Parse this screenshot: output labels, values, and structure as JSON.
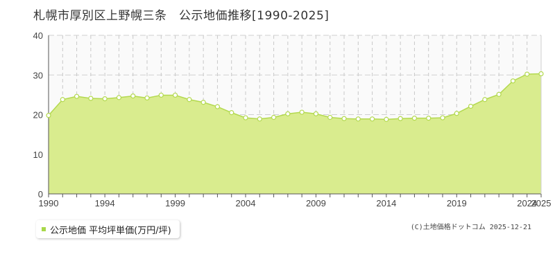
{
  "title": "札幌市厚別区上野幌三条　公示地価推移[1990-2025]",
  "legend_label": "公示地価 平均坪単価(万円/坪)",
  "credit": "(C)土地価格ドットコム 2025-12-21",
  "colors": {
    "area": "#d9ec8e",
    "line": "#b3d94f",
    "point_fill": "#ffffff",
    "point_stroke": "#b3d94f",
    "legend_swatch": "#a8d84a"
  },
  "chart_data": {
    "type": "area",
    "title": "札幌市厚別区上野幌三条　公示地価推移[1990-2025]",
    "xlabel": "",
    "ylabel": "",
    "ylim": [
      0,
      40
    ],
    "yticks": [
      0,
      10,
      20,
      30,
      40
    ],
    "xticks": [
      1990,
      1994,
      1999,
      2004,
      2009,
      2014,
      2019,
      2024,
      2025
    ],
    "grid": true,
    "legend": "bottom-left",
    "series": [
      {
        "name": "公示地価 平均坪単価(万円/坪)",
        "x": [
          1990,
          1991,
          1992,
          1993,
          1994,
          1995,
          1996,
          1997,
          1998,
          1999,
          2000,
          2001,
          2002,
          2003,
          2004,
          2005,
          2006,
          2007,
          2008,
          2009,
          2010,
          2011,
          2012,
          2013,
          2014,
          2015,
          2016,
          2017,
          2018,
          2019,
          2020,
          2021,
          2022,
          2023,
          2024,
          2025
        ],
        "values": [
          19.8,
          23.8,
          24.6,
          24.1,
          24.0,
          24.3,
          24.7,
          24.2,
          24.9,
          24.9,
          23.8,
          23.1,
          22.0,
          20.5,
          19.2,
          18.9,
          19.3,
          20.2,
          20.6,
          20.2,
          19.3,
          19.0,
          18.9,
          18.9,
          18.8,
          19.0,
          19.1,
          19.1,
          19.2,
          20.3,
          22.1,
          23.8,
          25.1,
          28.5,
          30.2,
          30.3
        ]
      }
    ]
  }
}
